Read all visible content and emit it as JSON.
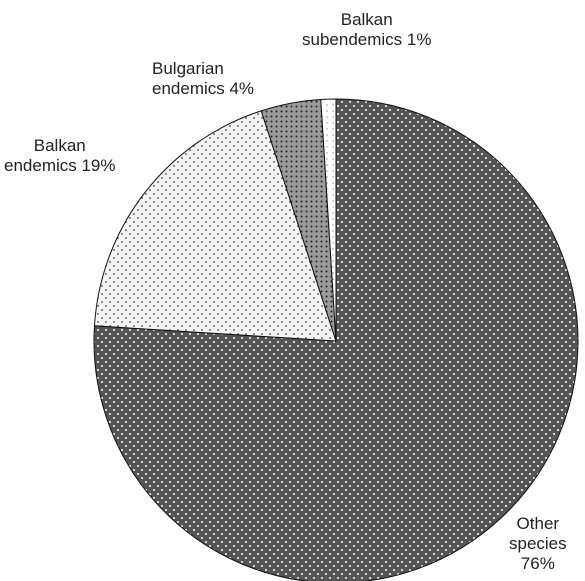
{
  "chart_data": {
    "type": "pie",
    "title": "",
    "slices": [
      {
        "name": "Other species",
        "value": 76,
        "pattern": "dark-dotted",
        "color": "#555555",
        "dot_color": "#ffffff"
      },
      {
        "name": "Balkan endemics",
        "value": 19,
        "pattern": "light-dotted",
        "color": "#f4f4f4",
        "dot_color": "#444444"
      },
      {
        "name": "Bulgarian endemics",
        "value": 4,
        "pattern": "medium-dotted",
        "color": "#9a9a9a",
        "dot_color": "#222222"
      },
      {
        "name": "Balkan subendemics",
        "value": 1,
        "pattern": "white",
        "color": "#ffffff",
        "dot_color": "#666666"
      }
    ],
    "labels": {
      "other": [
        "Other",
        "species",
        "76%"
      ],
      "balkan": [
        "Balkan",
        "endemics 19%"
      ],
      "bulgarian": [
        "Bulgarian",
        "endemics 4%"
      ],
      "subendemics": [
        "Balkan",
        "subendemics 1%"
      ]
    }
  }
}
